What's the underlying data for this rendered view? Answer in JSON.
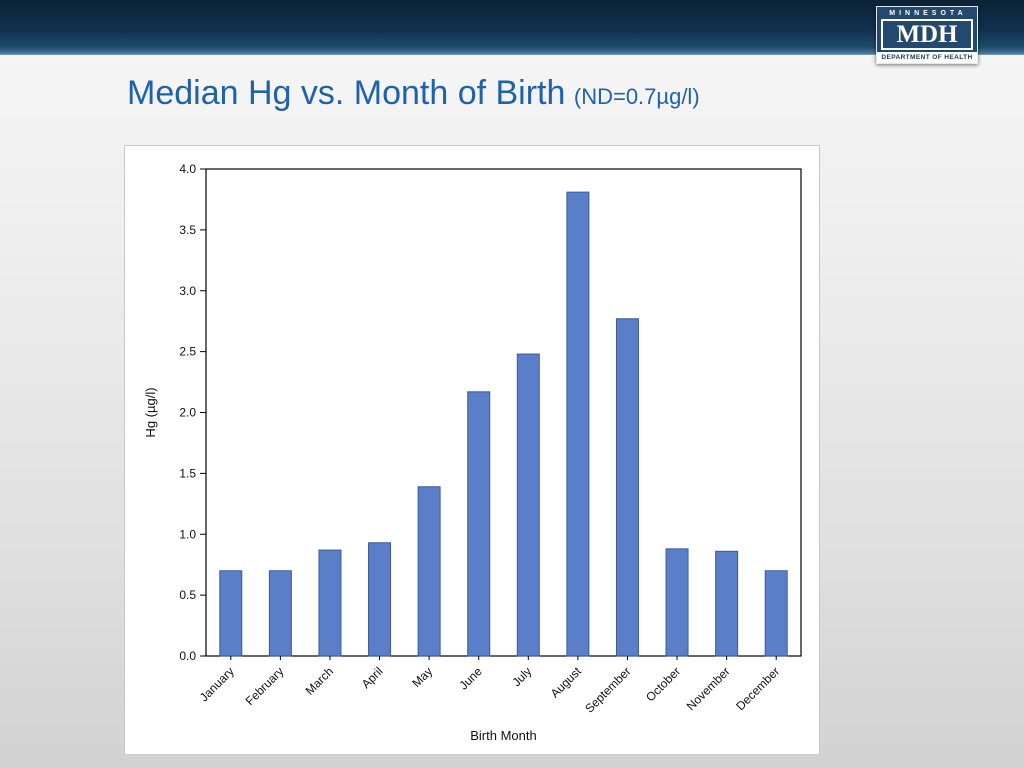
{
  "header": {
    "logo": {
      "state": "MINNESOTA",
      "abbr": "MDH",
      "dept": "DEPARTMENT OF HEALTH"
    }
  },
  "slide": {
    "title": "Median Hg vs. Month of Birth",
    "title_suffix": "(ND=0.7µg/l)",
    "title_color": "#1f62ab"
  },
  "chart_data": {
    "type": "bar",
    "title": "",
    "xlabel": "Birth Month",
    "ylabel": "Hg (µg/l)",
    "categories": [
      "January",
      "February",
      "March",
      "April",
      "May",
      "June",
      "July",
      "August",
      "September",
      "October",
      "November",
      "December"
    ],
    "values": [
      0.7,
      0.7,
      0.87,
      0.93,
      1.39,
      2.17,
      2.48,
      3.81,
      2.77,
      0.88,
      0.86,
      0.7
    ],
    "ylim": [
      0.0,
      4.0
    ],
    "yticks": [
      0.0,
      0.5,
      1.0,
      1.5,
      2.0,
      2.5,
      3.0,
      3.5,
      4.0
    ],
    "grid": false,
    "legend": false,
    "bar_color": "#5b7ec8",
    "bar_border": "#3c5a99",
    "axis_color": "#000000",
    "plot_bg": "#ffffff"
  }
}
